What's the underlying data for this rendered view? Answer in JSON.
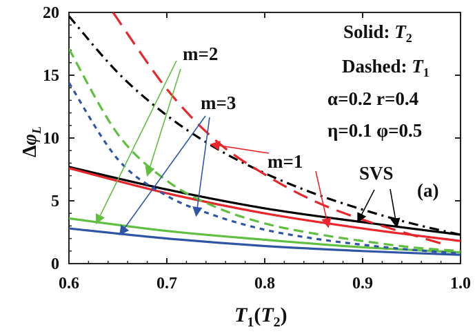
{
  "chart_data": {
    "type": "line",
    "panel_label": "(a)",
    "xlabel": "T1(T2)",
    "ylabel": "Δφ_L",
    "xlim": [
      0.6,
      1.0
    ],
    "ylim": [
      0,
      20
    ],
    "x_ticks": [
      0.6,
      0.7,
      0.8,
      0.9,
      1.0
    ],
    "x_tick_labels": [
      "0.6",
      "0.7",
      "0.8",
      "0.9",
      "1.0"
    ],
    "y_ticks": [
      0,
      5,
      10,
      15,
      20
    ],
    "y_tick_labels": [
      "0",
      "5",
      "10",
      "15",
      "20"
    ],
    "grid": false,
    "legend_text": {
      "solid": "Solid: T2",
      "dashed": "Dashed: T1",
      "params1": "α=0.2 r=0.4",
      "params2": "η=0.1 φ=0.5"
    },
    "annotations": {
      "m1": "m=1",
      "m2": "m=2",
      "m3": "m=3",
      "svs": "SVS"
    },
    "colors": {
      "svs": "#000000",
      "m1": "#e8262b",
      "m2": "#5fbf3f",
      "m3": "#2f56a6"
    },
    "series": [
      {
        "group": "svs",
        "style": "solid",
        "x": [
          0.6,
          0.7,
          0.8,
          0.9,
          1.0
        ],
        "y": [
          7.7,
          5.9,
          4.4,
          3.3,
          2.3
        ]
      },
      {
        "group": "svs",
        "style": "dashdot",
        "x": [
          0.6,
          0.65,
          0.7,
          0.75,
          0.8,
          0.85,
          0.9,
          0.95,
          1.0
        ],
        "y": [
          19.7,
          15.2,
          11.8,
          9.2,
          7.2,
          5.6,
          4.3,
          3.2,
          2.3
        ]
      },
      {
        "group": "m1",
        "style": "solid",
        "x": [
          0.6,
          0.7,
          0.8,
          0.9,
          1.0
        ],
        "y": [
          7.6,
          5.6,
          4.0,
          2.8,
          1.8
        ]
      },
      {
        "group": "m1",
        "style": "dashed",
        "x": [
          0.645,
          0.7,
          0.75,
          0.8,
          0.85,
          0.9,
          0.95,
          0.985
        ],
        "y": [
          20.0,
          13.9,
          9.8,
          7.1,
          5.0,
          3.5,
          2.3,
          1.5
        ]
      },
      {
        "group": "m2",
        "style": "solid",
        "x": [
          0.6,
          0.7,
          0.8,
          0.9,
          1.0
        ],
        "y": [
          3.6,
          2.6,
          1.9,
          1.3,
          0.9
        ]
      },
      {
        "group": "m2",
        "style": "dashed",
        "x": [
          0.6,
          0.65,
          0.7,
          0.75,
          0.8,
          0.85,
          0.9,
          0.95,
          1.0
        ],
        "y": [
          17.1,
          10.3,
          6.6,
          4.5,
          3.2,
          2.4,
          1.8,
          1.3,
          1.0
        ]
      },
      {
        "group": "m3",
        "style": "solid",
        "x": [
          0.6,
          0.7,
          0.8,
          0.9,
          1.0
        ],
        "y": [
          2.8,
          2.0,
          1.4,
          1.0,
          0.7
        ]
      },
      {
        "group": "m3",
        "style": "dashed",
        "x": [
          0.6,
          0.65,
          0.7,
          0.75,
          0.8,
          0.85,
          0.9,
          0.95,
          1.0
        ],
        "y": [
          14.4,
          8.3,
          5.4,
          3.8,
          2.7,
          2.0,
          1.5,
          1.1,
          0.8
        ]
      }
    ],
    "arrows": [
      {
        "label": "m1",
        "to": [
          0.745,
          9.5
        ]
      },
      {
        "label": "m1",
        "to": [
          0.865,
          2.9
        ]
      },
      {
        "label": "m2",
        "to": [
          0.628,
          3.2
        ]
      },
      {
        "label": "m2",
        "to": [
          0.68,
          7.0
        ]
      },
      {
        "label": "m3",
        "to": [
          0.652,
          2.3
        ]
      },
      {
        "label": "m3",
        "to": [
          0.73,
          3.8
        ]
      },
      {
        "label": "svs",
        "to": [
          0.895,
          3.3
        ]
      },
      {
        "label": "svs",
        "to": [
          0.935,
          2.9
        ]
      }
    ]
  }
}
